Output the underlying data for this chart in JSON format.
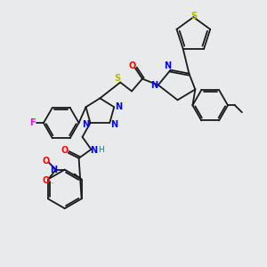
{
  "background_color": "#e8eaec",
  "fig_width": 3.0,
  "fig_height": 3.0,
  "dpi": 100,
  "colors": {
    "C": "#1a1a1a",
    "N": "#0000ff",
    "O": "#ff0000",
    "S_yellow": "#b8b800",
    "S_thiophene": "#b8b800",
    "F": "#ff00ff",
    "H": "#008080",
    "bond": "#1a1a1a"
  }
}
